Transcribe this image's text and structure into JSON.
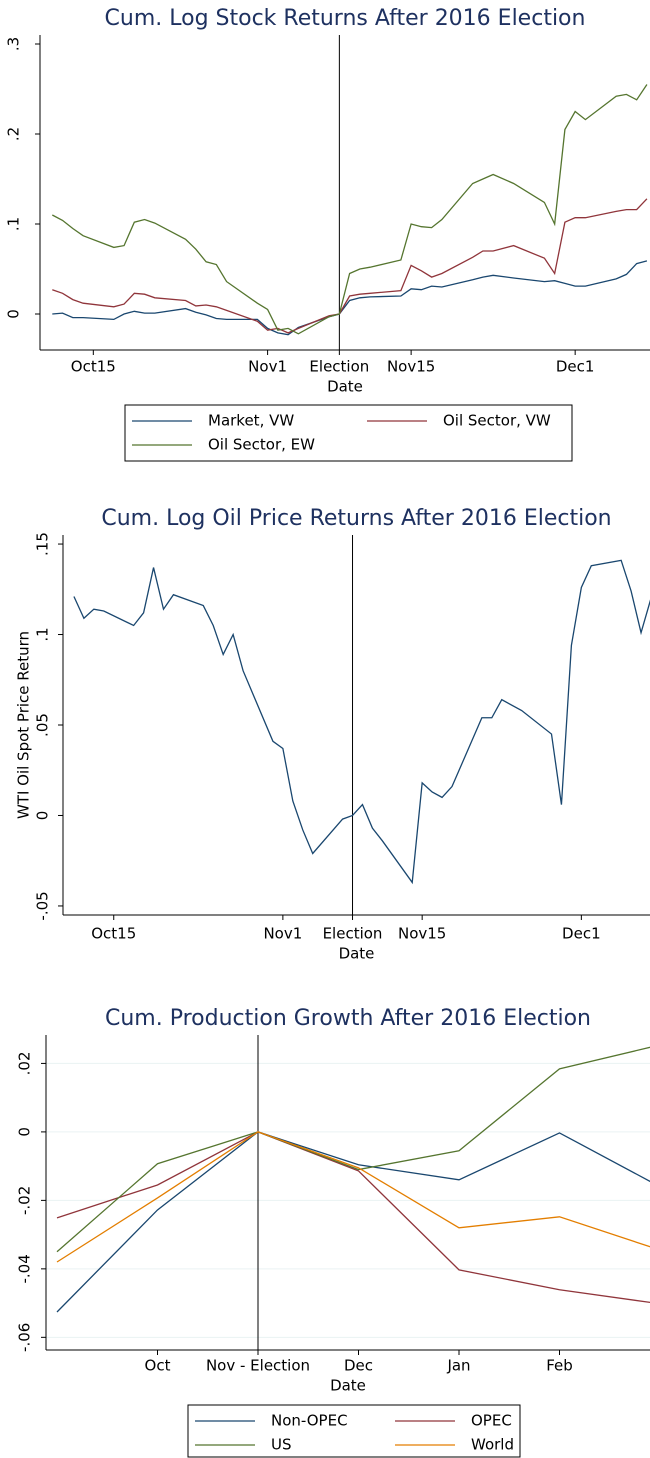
{
  "chart_data": [
    {
      "type": "line",
      "title": "Cum. Log Stock Returns After 2016 Election",
      "x_label": "Date",
      "x": [
        -28,
        -27,
        -26,
        -25,
        -22,
        -21,
        -20,
        -19,
        -18,
        -15,
        -14,
        -13,
        -12,
        -11,
        -8,
        -7,
        -6,
        -5,
        -4,
        -1,
        0,
        1,
        2,
        3,
        6,
        7,
        8,
        9,
        10,
        13,
        14,
        15,
        17,
        20,
        21,
        22,
        23,
        24,
        27,
        28,
        29,
        30
      ],
      "series": [
        {
          "name": "Market, VW",
          "color": "#1a476f",
          "values": [
            0,
            0.001,
            -0.004,
            -0.004,
            -0.006,
            0,
            0.003,
            0.001,
            0.001,
            0.006,
            0.002,
            -0.001,
            -0.005,
            -0.006,
            -0.006,
            -0.016,
            -0.021,
            -0.023,
            -0.015,
            -0.003,
            0,
            0.015,
            0.018,
            0.019,
            0.02,
            0.028,
            0.027,
            0.031,
            0.03,
            0.038,
            0.041,
            0.043,
            0.04,
            0.036,
            0.037,
            0.034,
            0.031,
            0.031,
            0.039,
            0.044,
            0.056,
            0.059
          ]
        },
        {
          "name": "Oil Sector, VW",
          "color": "#90353b",
          "values": [
            0.027,
            0.023,
            0.016,
            0.012,
            0.008,
            0.011,
            0.023,
            0.022,
            0.018,
            0.015,
            0.009,
            0.01,
            0.008,
            0.004,
            -0.008,
            -0.018,
            -0.016,
            -0.021,
            -0.016,
            -0.002,
            0,
            0.02,
            0.022,
            0.023,
            0.026,
            0.054,
            0.048,
            0.041,
            0.045,
            0.063,
            0.07,
            0.07,
            0.076,
            0.062,
            0.045,
            0.102,
            0.107,
            0.107,
            0.114,
            0.116,
            0.116,
            0.128
          ]
        },
        {
          "name": "Oil Sector, EW",
          "color": "#55752f",
          "values": [
            0.11,
            0.104,
            0.095,
            0.087,
            0.074,
            0.076,
            0.102,
            0.105,
            0.101,
            0.083,
            0.072,
            0.058,
            0.055,
            0.036,
            0.012,
            0.005,
            -0.018,
            -0.016,
            -0.022,
            -0.003,
            0,
            0.045,
            0.05,
            0.052,
            0.06,
            0.1,
            0.097,
            0.096,
            0.105,
            0.145,
            0.15,
            0.155,
            0.145,
            0.124,
            0.1,
            0.205,
            0.225,
            0.216,
            0.242,
            0.244,
            0.238,
            0.255
          ]
        }
      ],
      "xlim": [
        -29.2,
        30.3
      ],
      "xticks": [
        {
          "value": -24,
          "label": "Oct15"
        },
        {
          "value": -7,
          "label": "Nov1"
        },
        {
          "value": 0,
          "label": "Election"
        },
        {
          "value": 7,
          "label": "Nov15"
        },
        {
          "value": 23,
          "label": "Dec1"
        }
      ],
      "ylim": [
        -0.04,
        0.31
      ],
      "yticks": [
        0,
        {
          "value": 0.1,
          "label": ".1"
        },
        {
          "value": 0.2,
          "label": ".2"
        },
        {
          "value": 0.3,
          "label": ".3"
        }
      ],
      "vline": 0,
      "grid": false,
      "legend": "bottom"
    },
    {
      "type": "line",
      "title": "Cum. Log Oil Price Returns After 2016 Election",
      "x_label": "Date",
      "y_label": "WTI Oil Spot Price Return",
      "x": [
        -28,
        -27,
        -26,
        -25,
        -22,
        -21,
        -20,
        -19,
        -18,
        -15,
        -14,
        -13,
        -12,
        -11,
        -8,
        -7,
        -6,
        -5,
        -4,
        -1,
        0,
        1,
        2,
        3,
        6,
        7,
        8,
        9,
        10,
        13,
        14,
        15,
        17,
        20,
        21,
        22,
        23,
        24,
        27,
        28,
        29,
        30
      ],
      "series": [
        {
          "color": "#1a476f",
          "values": [
            0.121,
            0.109,
            0.114,
            0.113,
            0.105,
            0.112,
            0.137,
            0.114,
            0.122,
            0.116,
            0.105,
            0.089,
            0.1,
            0.08,
            0.041,
            0.037,
            0.008,
            -0.008,
            -0.021,
            -0.002,
            0,
            0.006,
            -0.007,
            -0.014,
            -0.037,
            0.018,
            0.013,
            0.01,
            0.016,
            0.054,
            0.054,
            0.064,
            0.058,
            0.045,
            0.006,
            0.094,
            0.126,
            0.138,
            0.141,
            0.124,
            0.101,
            0.12
          ]
        }
      ],
      "xlim": [
        -29.1,
        29.9
      ],
      "xticks": [
        {
          "value": -24,
          "label": "Oct15"
        },
        {
          "value": -7,
          "label": "Nov1"
        },
        {
          "value": 0,
          "label": "Election"
        },
        {
          "value": 7,
          "label": "Nov15"
        },
        {
          "value": 23,
          "label": "Dec1"
        }
      ],
      "ylim": [
        -0.055,
        0.155
      ],
      "yticks": [
        {
          "value": -0.05,
          "label": "-.05"
        },
        0,
        {
          "value": 0.05,
          "label": ".05"
        },
        {
          "value": 0.1,
          "label": ".1"
        },
        {
          "value": 0.15,
          "label": ".15"
        }
      ],
      "vline": 0,
      "grid": false
    },
    {
      "type": "line",
      "title": "Cum. Production Growth After 2016 Election",
      "x_label": "Date",
      "categories": [
        null,
        "Oct",
        "Nov - Election",
        "Dec",
        "Jan",
        "Feb",
        null
      ],
      "series": [
        {
          "name": "Non-OPEC",
          "color": "#1a476f",
          "values": [
            -0.0526,
            -0.0228,
            0,
            -0.0096,
            -0.014,
            -0.0003,
            -0.016
          ]
        },
        {
          "name": "OPEC",
          "color": "#90353b",
          "values": [
            -0.0251,
            -0.0155,
            0,
            -0.0114,
            -0.0403,
            -0.0461,
            -0.0502
          ]
        },
        {
          "name": "US",
          "color": "#55752f",
          "values": [
            -0.035,
            -0.0093,
            0,
            -0.011,
            -0.0055,
            0.0184,
            0.0254
          ]
        },
        {
          "name": "World",
          "color": "#e37e00",
          "values": [
            -0.038,
            -0.0193,
            0,
            -0.0105,
            -0.028,
            -0.0248,
            -0.0345
          ]
        }
      ],
      "ylim": [
        -0.0637,
        0.0283
      ],
      "yticks": [
        {
          "value": -0.06,
          "label": "-.06"
        },
        {
          "value": -0.04,
          "label": "-.04"
        },
        {
          "value": -0.02,
          "label": "-.02"
        },
        0,
        {
          "value": 0.02,
          "label": ".02"
        }
      ],
      "vline": "Nov - Election",
      "grid": true,
      "legend": "bottom"
    }
  ]
}
